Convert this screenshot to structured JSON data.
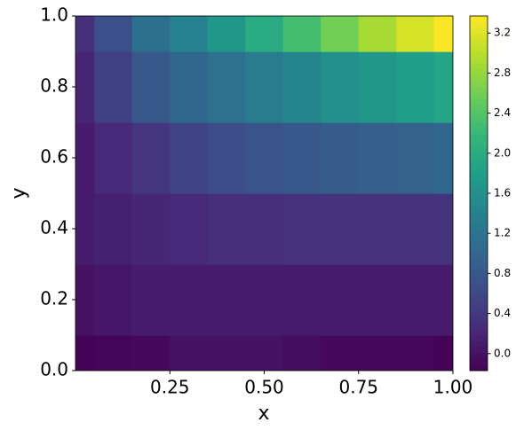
{
  "chart_data": {
    "type": "contour",
    "xlabel": "x",
    "ylabel": "y",
    "xlim": [
      0,
      1
    ],
    "ylim": [
      0,
      1
    ],
    "xticks": [
      0.25,
      {
        "value": 0.5,
        "label": "0.50"
      },
      0.75,
      {
        "value": 1,
        "label": "1.00"
      }
    ],
    "yticks": [
      {
        "value": 0,
        "label": "0.0"
      },
      0.2,
      0.4,
      0.6,
      0.8,
      {
        "value": 1,
        "label": "1.0"
      }
    ],
    "x": [
      0,
      0.1,
      0.2,
      0.3,
      0.4,
      0.5,
      0.6,
      0.7,
      0.8,
      0.9,
      1
    ],
    "y": [
      0,
      0.2,
      0.4,
      0.6,
      0.8,
      1
    ],
    "z": [
      [
        -0.15,
        -0.12,
        -0.1,
        0.0,
        0.0,
        0.0,
        -0.05,
        -0.1,
        -0.1,
        -0.1,
        -0.15
      ],
      [
        0.0,
        0.05,
        0.1,
        0.1,
        0.1,
        0.1,
        0.1,
        0.1,
        0.1,
        0.1,
        0.1
      ],
      [
        0.1,
        0.15,
        0.2,
        0.25,
        0.3,
        0.3,
        0.35,
        0.35,
        0.35,
        0.35,
        0.35
      ],
      [
        0.1,
        0.25,
        0.4,
        0.55,
        0.65,
        0.75,
        0.8,
        0.85,
        0.9,
        0.95,
        1.0
      ],
      [
        0.2,
        0.5,
        0.8,
        1.0,
        1.15,
        1.3,
        1.45,
        1.6,
        1.7,
        1.8,
        1.9
      ],
      [
        0.3,
        0.7,
        1.1,
        1.4,
        1.7,
        2.0,
        2.3,
        2.6,
        2.9,
        3.15,
        3.35
      ]
    ],
    "colormap": "viridis",
    "clim": [
      -0.17,
      3.37
    ],
    "cticks": [
      {
        "value": 0,
        "label": "0.0"
      },
      0.4,
      0.8,
      1.2,
      1.6,
      {
        "value": 2,
        "label": "2.0"
      },
      2.4,
      2.8,
      3.2
    ]
  }
}
